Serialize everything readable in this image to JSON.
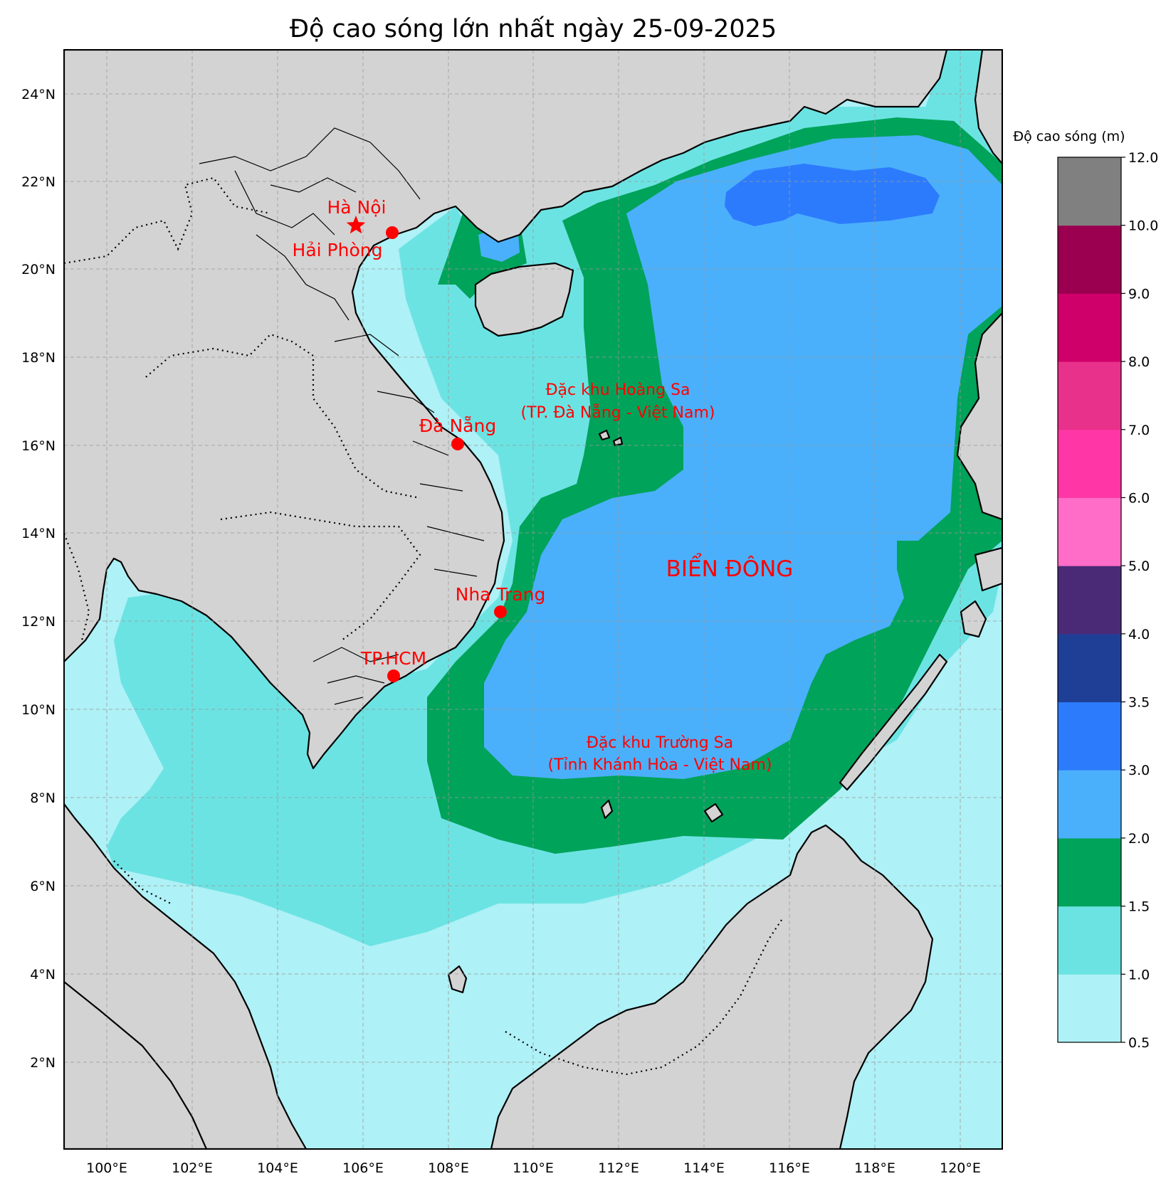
{
  "title": "Độ cao sóng lớn nhất ngày 25-09-2025",
  "colorbar": {
    "title": "Độ cao sóng (m)",
    "levels": [
      "0.5",
      "1.0",
      "1.5",
      "2.0",
      "3.0",
      "3.5",
      "4.0",
      "5.0",
      "6.0",
      "7.0",
      "8.0",
      "9.0",
      "10.0",
      "12.0"
    ],
    "colors": [
      "#aef1f6",
      "#6ce3e3",
      "#00a35a",
      "#4bb0fb",
      "#2d7bfd",
      "#1f3f97",
      "#4a2a77",
      "#ff6dc9",
      "#ff37a6",
      "#e8318a",
      "#d0006a",
      "#9b0050",
      "#808080"
    ]
  },
  "axes": {
    "lon_ticks": [
      "100°E",
      "102°E",
      "104°E",
      "106°E",
      "108°E",
      "110°E",
      "112°E",
      "114°E",
      "116°E",
      "118°E",
      "120°E"
    ],
    "lat_ticks": [
      "2°N",
      "4°N",
      "6°N",
      "8°N",
      "10°N",
      "12°N",
      "14°N",
      "16°N",
      "18°N",
      "20°N",
      "22°N",
      "24°N"
    ]
  },
  "cities": [
    {
      "name": "Hà Nội",
      "marker": "star"
    },
    {
      "name": "Hải Phòng",
      "marker": "dot"
    },
    {
      "name": "Đà Nẵng",
      "marker": "dot"
    },
    {
      "name": "Nha Trang",
      "marker": "dot"
    },
    {
      "name": "TP.HCM",
      "marker": "dot"
    }
  ],
  "labels": {
    "hoang_sa_1": "Đặc khu Hoàng Sa",
    "hoang_sa_2": "(TP. Đà Nẵng - Việt Nam)",
    "truong_sa_1": "Đặc khu Trường Sa",
    "truong_sa_2": "(Tỉnh Khánh Hòa - Việt Nam)",
    "sea": "BIỂN ĐÔNG"
  },
  "colors": {
    "land": "#d3d3d3",
    "marker": "#ff0000"
  }
}
